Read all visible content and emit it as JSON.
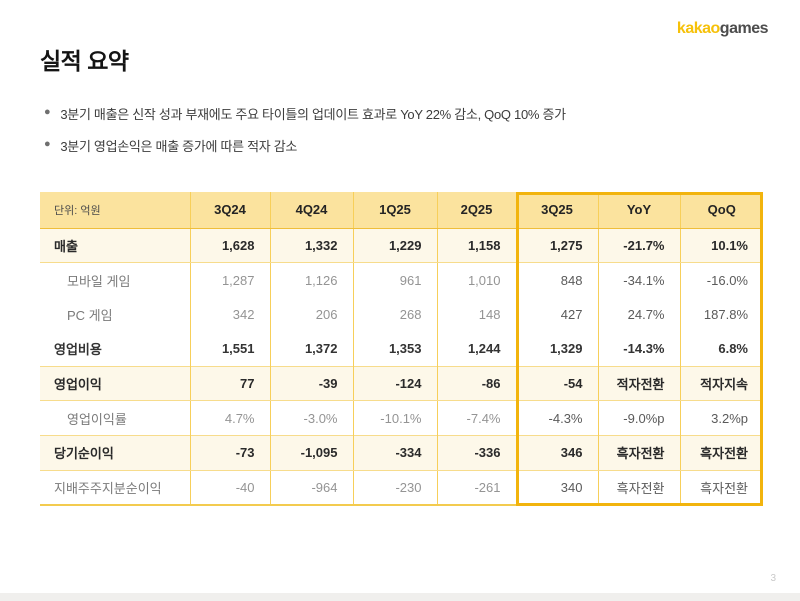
{
  "logo": {
    "part1": "kakao",
    "part2": "games"
  },
  "title": "실적 요약",
  "bullets": [
    "3분기 매출은 신작 성과 부재에도 주요 타이틀의 업데이트 효과로 YoY 22% 감소, QoQ 10% 증가",
    "3분기 영업손익은 매출 증가에 따른 적자 감소"
  ],
  "table": {
    "headers": [
      "단위: 억원",
      "3Q24",
      "4Q24",
      "1Q25",
      "2Q25",
      "3Q25",
      "YoY",
      "QoQ"
    ],
    "highlighted_columns": [
      "3Q25",
      "YoY",
      "QoQ"
    ],
    "rows": [
      {
        "emphasis": "strong",
        "indent": false,
        "cells": [
          "매출",
          "1,628",
          "1,332",
          "1,229",
          "1,158",
          "1,275",
          "-21.7%",
          "10.1%"
        ]
      },
      {
        "emphasis": "sub",
        "indent": true,
        "cells": [
          "모바일 게임",
          "1,287",
          "1,126",
          "961",
          "1,010",
          "848",
          "-34.1%",
          "-16.0%"
        ]
      },
      {
        "emphasis": "sub",
        "indent": true,
        "cells": [
          "PC 게임",
          "342",
          "206",
          "268",
          "148",
          "427",
          "24.7%",
          "187.8%"
        ]
      },
      {
        "emphasis": "normal",
        "indent": false,
        "cells": [
          "영업비용",
          "1,551",
          "1,372",
          "1,353",
          "1,244",
          "1,329",
          "-14.3%",
          "6.8%"
        ]
      },
      {
        "emphasis": "strong",
        "indent": false,
        "cells": [
          "영업이익",
          "77",
          "-39",
          "-124",
          "-86",
          "-54",
          "적자전환",
          "적자지속"
        ]
      },
      {
        "emphasis": "sub",
        "indent": true,
        "cells": [
          "영업이익률",
          "4.7%",
          "-3.0%",
          "-10.1%",
          "-7.4%",
          "-4.3%",
          "-9.0%p",
          "3.2%p"
        ]
      },
      {
        "emphasis": "strong",
        "indent": false,
        "cells": [
          "당기순이익",
          "-73",
          "-1,095",
          "-334",
          "-336",
          "346",
          "흑자전환",
          "흑자전환"
        ]
      },
      {
        "emphasis": "sub",
        "indent": false,
        "cells": [
          "지배주주지분순이익",
          "-40",
          "-964",
          "-230",
          "-261",
          "340",
          "흑자전환",
          "흑자전환"
        ]
      }
    ]
  },
  "page_number": "3",
  "colors": {
    "logo_kakao": "#F6C10A",
    "logo_games": "#4D4D4D",
    "header_bg": "#FBE39E",
    "emphasis_row_bg": "#FDF8E9",
    "grid_line": "#F7CF5A",
    "highlight_border": "#F2B40D"
  }
}
